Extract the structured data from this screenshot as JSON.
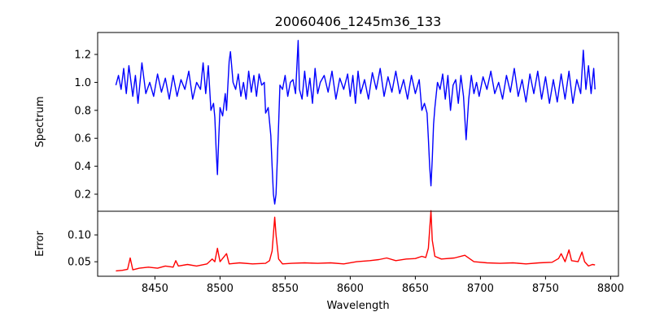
{
  "chart_data": [
    {
      "type": "line",
      "title": "20060406_1245m36_133",
      "xlabel": "",
      "ylabel": "Spectrum",
      "xlim": [
        8406,
        8806
      ],
      "ylim": [
        0.078,
        1.357
      ],
      "yticks": [
        0.2,
        0.4,
        0.6,
        0.8,
        1.0,
        1.2
      ],
      "ytick_labels": [
        "0.2",
        "0.4",
        "0.6",
        "0.8",
        "1.0",
        "1.2"
      ],
      "color": "#0000ff",
      "x": [
        8420,
        8422,
        8424,
        8426,
        8428,
        8430,
        8433,
        8435,
        8437,
        8440,
        8443,
        8446,
        8449,
        8452,
        8455,
        8458,
        8461,
        8464,
        8467,
        8470,
        8473,
        8476,
        8479,
        8482,
        8485,
        8487,
        8489,
        8491,
        8493,
        8495,
        8496,
        8497,
        8498,
        8499,
        8500,
        8502,
        8504,
        8505,
        8507,
        8508,
        8510,
        8512,
        8514,
        8516,
        8518,
        8520,
        8522,
        8524,
        8526,
        8528,
        8530,
        8532,
        8534,
        8535,
        8537,
        8539,
        8540,
        8541,
        8542,
        8543,
        8544,
        8545,
        8546,
        8548,
        8550,
        8552,
        8554,
        8556,
        8558,
        8560,
        8561,
        8563,
        8565,
        8567,
        8569,
        8571,
        8573,
        8575,
        8577,
        8580,
        8583,
        8586,
        8589,
        8592,
        8595,
        8598,
        8600,
        8602,
        8604,
        8606,
        8608,
        8611,
        8614,
        8617,
        8620,
        8623,
        8626,
        8629,
        8632,
        8635,
        8638,
        8641,
        8644,
        8647,
        8650,
        8653,
        8655,
        8657,
        8659,
        8660,
        8661,
        8662,
        8663,
        8664,
        8665,
        8667,
        8669,
        8671,
        8673,
        8675,
        8677,
        8679,
        8681,
        8683,
        8685,
        8687,
        8689,
        8691,
        8693,
        8695,
        8697,
        8699,
        8702,
        8705,
        8708,
        8711,
        8714,
        8717,
        8720,
        8723,
        8726,
        8729,
        8732,
        8735,
        8738,
        8741,
        8744,
        8747,
        8750,
        8753,
        8756,
        8759,
        8762,
        8765,
        8768,
        8771,
        8774,
        8777,
        8779,
        8781,
        8783,
        8785,
        8787,
        8788
      ],
      "y": [
        0.98,
        1.05,
        0.95,
        1.1,
        0.92,
        1.12,
        0.9,
        1.05,
        0.85,
        1.14,
        0.92,
        1.0,
        0.9,
        1.06,
        0.93,
        1.03,
        0.88,
        1.05,
        0.9,
        1.02,
        0.95,
        1.08,
        0.88,
        1.0,
        0.95,
        1.14,
        0.92,
        1.12,
        0.8,
        0.85,
        0.75,
        0.52,
        0.34,
        0.6,
        0.82,
        0.76,
        0.92,
        0.8,
        1.15,
        1.22,
        1.0,
        0.95,
        1.06,
        0.9,
        1.0,
        0.88,
        1.08,
        0.93,
        1.05,
        0.9,
        1.06,
        0.98,
        1.0,
        0.78,
        0.82,
        0.62,
        0.4,
        0.2,
        0.13,
        0.2,
        0.45,
        0.7,
        0.98,
        0.95,
        1.05,
        0.9,
        1.0,
        1.02,
        0.92,
        1.3,
        0.95,
        0.88,
        1.08,
        0.9,
        1.03,
        0.85,
        1.1,
        0.92,
        1.0,
        1.05,
        0.93,
        1.08,
        0.88,
        1.03,
        0.95,
        1.06,
        0.9,
        1.05,
        0.85,
        1.08,
        0.92,
        1.02,
        0.88,
        1.07,
        0.95,
        1.1,
        0.9,
        1.04,
        0.93,
        1.08,
        0.92,
        1.02,
        0.88,
        1.05,
        0.92,
        1.02,
        0.8,
        0.85,
        0.78,
        0.6,
        0.4,
        0.26,
        0.45,
        0.7,
        0.82,
        1.0,
        0.95,
        1.06,
        0.88,
        1.05,
        0.8,
        0.98,
        1.02,
        0.85,
        1.05,
        0.9,
        0.59,
        0.88,
        1.05,
        0.92,
        1.0,
        0.9,
        1.04,
        0.95,
        1.08,
        0.92,
        1.0,
        0.88,
        1.05,
        0.93,
        1.1,
        0.9,
        1.02,
        0.86,
        1.06,
        0.92,
        1.08,
        0.88,
        1.04,
        0.85,
        1.02,
        0.86,
        1.06,
        0.88,
        1.08,
        0.85,
        1.02,
        0.92,
        1.23,
        0.95,
        1.12,
        0.92,
        1.1,
        0.95
      ]
    },
    {
      "type": "line",
      "xlabel": "Wavelength",
      "ylabel": "Error",
      "xlim": [
        8406,
        8806
      ],
      "ylim": [
        0.023,
        0.144
      ],
      "xticks": [
        8450,
        8500,
        8550,
        8600,
        8650,
        8700,
        8750,
        8800
      ],
      "xtick_labels": [
        "8450",
        "8500",
        "8550",
        "8600",
        "8650",
        "8700",
        "8750",
        "8800"
      ],
      "yticks": [
        0.05,
        0.1
      ],
      "ytick_labels": [
        "0.05",
        "0.10"
      ],
      "color": "#ff0000",
      "x": [
        8420,
        8425,
        8429,
        8431,
        8433,
        8438,
        8445,
        8452,
        8458,
        8464,
        8466,
        8468,
        8475,
        8482,
        8490,
        8494,
        8496,
        8498,
        8500,
        8505,
        8507,
        8515,
        8525,
        8535,
        8538,
        8540,
        8542,
        8543,
        8545,
        8548,
        8555,
        8565,
        8575,
        8585,
        8595,
        8605,
        8615,
        8622,
        8628,
        8635,
        8643,
        8650,
        8655,
        8658,
        8660,
        8662,
        8663,
        8665,
        8670,
        8680,
        8688,
        8695,
        8705,
        8715,
        8725,
        8735,
        8745,
        8755,
        8760,
        8762,
        8765,
        8768,
        8770,
        8775,
        8778,
        8780,
        8783,
        8786,
        8788
      ],
      "y": [
        0.033,
        0.034,
        0.036,
        0.057,
        0.035,
        0.038,
        0.04,
        0.038,
        0.042,
        0.04,
        0.052,
        0.042,
        0.045,
        0.042,
        0.046,
        0.055,
        0.05,
        0.075,
        0.05,
        0.065,
        0.046,
        0.048,
        0.046,
        0.047,
        0.052,
        0.07,
        0.133,
        0.1,
        0.055,
        0.046,
        0.047,
        0.048,
        0.047,
        0.048,
        0.046,
        0.05,
        0.052,
        0.054,
        0.057,
        0.052,
        0.055,
        0.056,
        0.06,
        0.058,
        0.075,
        0.145,
        0.09,
        0.06,
        0.055,
        0.057,
        0.062,
        0.05,
        0.048,
        0.047,
        0.048,
        0.046,
        0.048,
        0.049,
        0.056,
        0.065,
        0.05,
        0.072,
        0.052,
        0.05,
        0.068,
        0.05,
        0.042,
        0.045,
        0.044
      ]
    }
  ]
}
